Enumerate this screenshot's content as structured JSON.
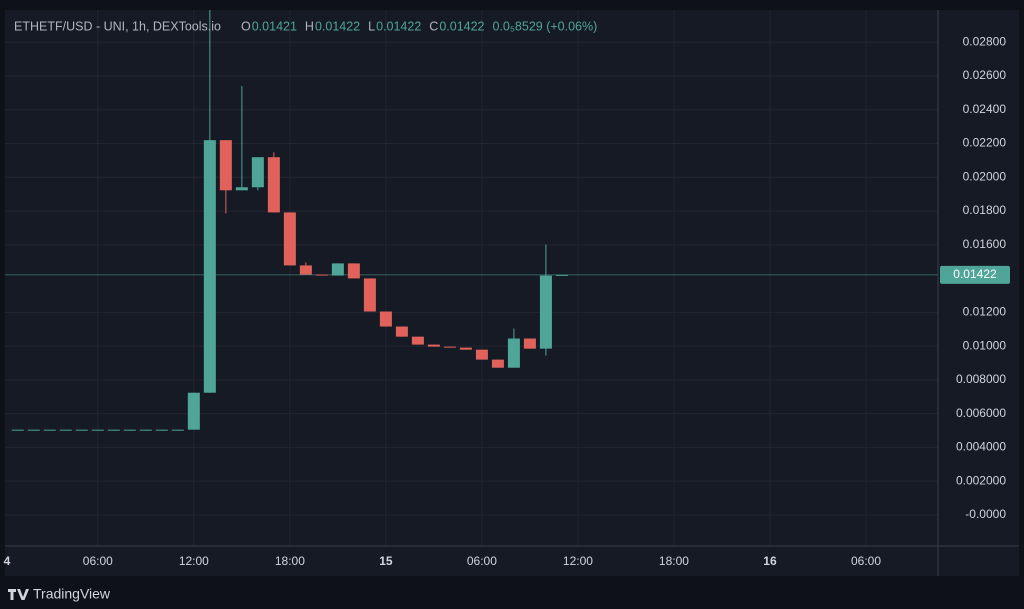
{
  "chart_data": {
    "type": "candlestick",
    "title": "ETHETF/USD - UNI, 1h, DEXTools.io",
    "ohlc_header": {
      "o_label": "O",
      "o": "0.01421",
      "h_label": "H",
      "h": "0.01422",
      "l_label": "L",
      "l": "0.01422",
      "c_label": "C",
      "c": "0.01422",
      "change": "0.0₅8529 (+0.06%)"
    },
    "x": [
      1,
      2,
      3,
      4,
      5,
      6,
      7,
      8,
      9,
      10,
      11,
      12,
      13,
      14,
      15,
      16,
      17,
      18,
      19,
      20,
      21,
      22,
      23,
      24,
      25,
      26,
      27,
      28,
      29,
      30,
      31,
      32,
      33,
      34,
      35
    ],
    "open": [
      0.00505,
      0.00505,
      0.00505,
      0.00505,
      0.00505,
      0.00505,
      0.00505,
      0.00505,
      0.00505,
      0.00505,
      0.00505,
      0.00505,
      0.00724,
      0.0222,
      0.01923,
      0.01941,
      0.02119,
      0.01792,
      0.01478,
      0.01424,
      0.01418,
      0.0149,
      0.01401,
      0.01205,
      0.01116,
      0.01056,
      0.01009,
      0.00997,
      0.00991,
      0.00979,
      0.0092,
      0.00872,
      0.01045,
      0.00985,
      0.01421
    ],
    "high": [
      0.00505,
      0.00505,
      0.00505,
      0.00505,
      0.00505,
      0.00505,
      0.00505,
      0.00505,
      0.00505,
      0.00505,
      0.00505,
      0.00724,
      0.03,
      0.0222,
      0.0254,
      0.02119,
      0.02148,
      0.01792,
      0.01496,
      0.01424,
      0.0149,
      0.0149,
      0.01401,
      0.01205,
      0.01116,
      0.01056,
      0.01009,
      0.00997,
      0.00991,
      0.00979,
      0.0092,
      0.01104,
      0.01045,
      0.01602,
      0.01422
    ],
    "low": [
      0.00505,
      0.00505,
      0.00505,
      0.00505,
      0.00505,
      0.00505,
      0.00505,
      0.00505,
      0.00505,
      0.00505,
      0.00505,
      0.00505,
      0.00724,
      0.01786,
      0.01923,
      0.01923,
      0.01792,
      0.01478,
      0.01424,
      0.01418,
      0.01418,
      0.01401,
      0.01205,
      0.01116,
      0.01056,
      0.01009,
      0.00997,
      0.00991,
      0.00979,
      0.0092,
      0.00872,
      0.00872,
      0.00985,
      0.00944,
      0.01422
    ],
    "close": [
      0.00505,
      0.00505,
      0.00505,
      0.00505,
      0.00505,
      0.00505,
      0.00505,
      0.00505,
      0.00505,
      0.00505,
      0.00505,
      0.00724,
      0.0222,
      0.01923,
      0.01941,
      0.02119,
      0.01792,
      0.01478,
      0.01424,
      0.01418,
      0.0149,
      0.01401,
      0.01205,
      0.01116,
      0.01056,
      0.01009,
      0.00997,
      0.00991,
      0.00979,
      0.0092,
      0.00872,
      0.01045,
      0.00985,
      0.01418,
      0.01422
    ],
    "up_color": "#4fa598",
    "down_color": "#e0625b",
    "xlim": [
      0.2,
      58.5
    ],
    "xticks": [
      {
        "value": 0,
        "label": "4"
      },
      {
        "value": 6,
        "label": "06:00"
      },
      {
        "value": 12,
        "label": "12:00"
      },
      {
        "value": 18,
        "label": "18:00"
      },
      {
        "value": 24,
        "label": "15"
      },
      {
        "value": 30,
        "label": "06:00"
      },
      {
        "value": 36,
        "label": "12:00"
      },
      {
        "value": 42,
        "label": "18:00"
      },
      {
        "value": 48,
        "label": "16"
      },
      {
        "value": 54,
        "label": "06:00"
      }
    ],
    "ylim": [
      -0.00184,
      0.02991
    ],
    "yticks": [
      {
        "value": 0.028,
        "label": "0.02800"
      },
      {
        "value": 0.026,
        "label": "0.02600"
      },
      {
        "value": 0.024,
        "label": "0.02400"
      },
      {
        "value": 0.022,
        "label": "0.02200"
      },
      {
        "value": 0.02,
        "label": "0.02000"
      },
      {
        "value": 0.018,
        "label": "0.01800"
      },
      {
        "value": 0.016,
        "label": "0.01600"
      },
      {
        "value": 0.012,
        "label": "0.01200"
      },
      {
        "value": 0.01,
        "label": "0.01000"
      },
      {
        "value": 0.008,
        "label": "0.008000"
      },
      {
        "value": 0.006,
        "label": "0.006000"
      },
      {
        "value": 0.004,
        "label": "0.004000"
      },
      {
        "value": 0.002,
        "label": "0.002000"
      },
      {
        "value": 0,
        "label": "-0.0000"
      }
    ],
    "last_price": {
      "value": 0.01422,
      "label": "0.01422"
    },
    "grid": true,
    "brand": "TradingView"
  }
}
